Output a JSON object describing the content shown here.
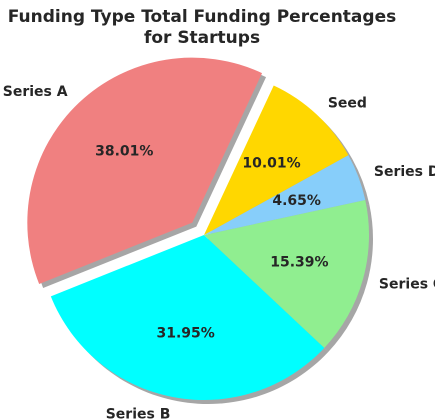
{
  "chart_data": {
    "type": "pie",
    "title_lines": [
      "Funding Type Total Funding Percentages",
      "for Startups"
    ],
    "start_angle_deg": 65,
    "direction": "counterclockwise",
    "shadow": true,
    "slices": [
      {
        "label": "Series A",
        "value": 38.01,
        "pct_label": "38.01%",
        "color": "#F08080",
        "explode": true
      },
      {
        "label": "Series B",
        "value": 31.95,
        "pct_label": "31.95%",
        "color": "#00FFFF",
        "explode": false
      },
      {
        "label": "Series C",
        "value": 15.39,
        "pct_label": "15.39%",
        "color": "#90EE90",
        "explode": false
      },
      {
        "label": "Series D",
        "value": 4.65,
        "pct_label": "4.65%",
        "color": "#87CEFA",
        "explode": false
      },
      {
        "label": "Seed",
        "value": 10.01,
        "pct_label": "10.01%",
        "color": "#FFD700",
        "explode": false
      }
    ]
  }
}
